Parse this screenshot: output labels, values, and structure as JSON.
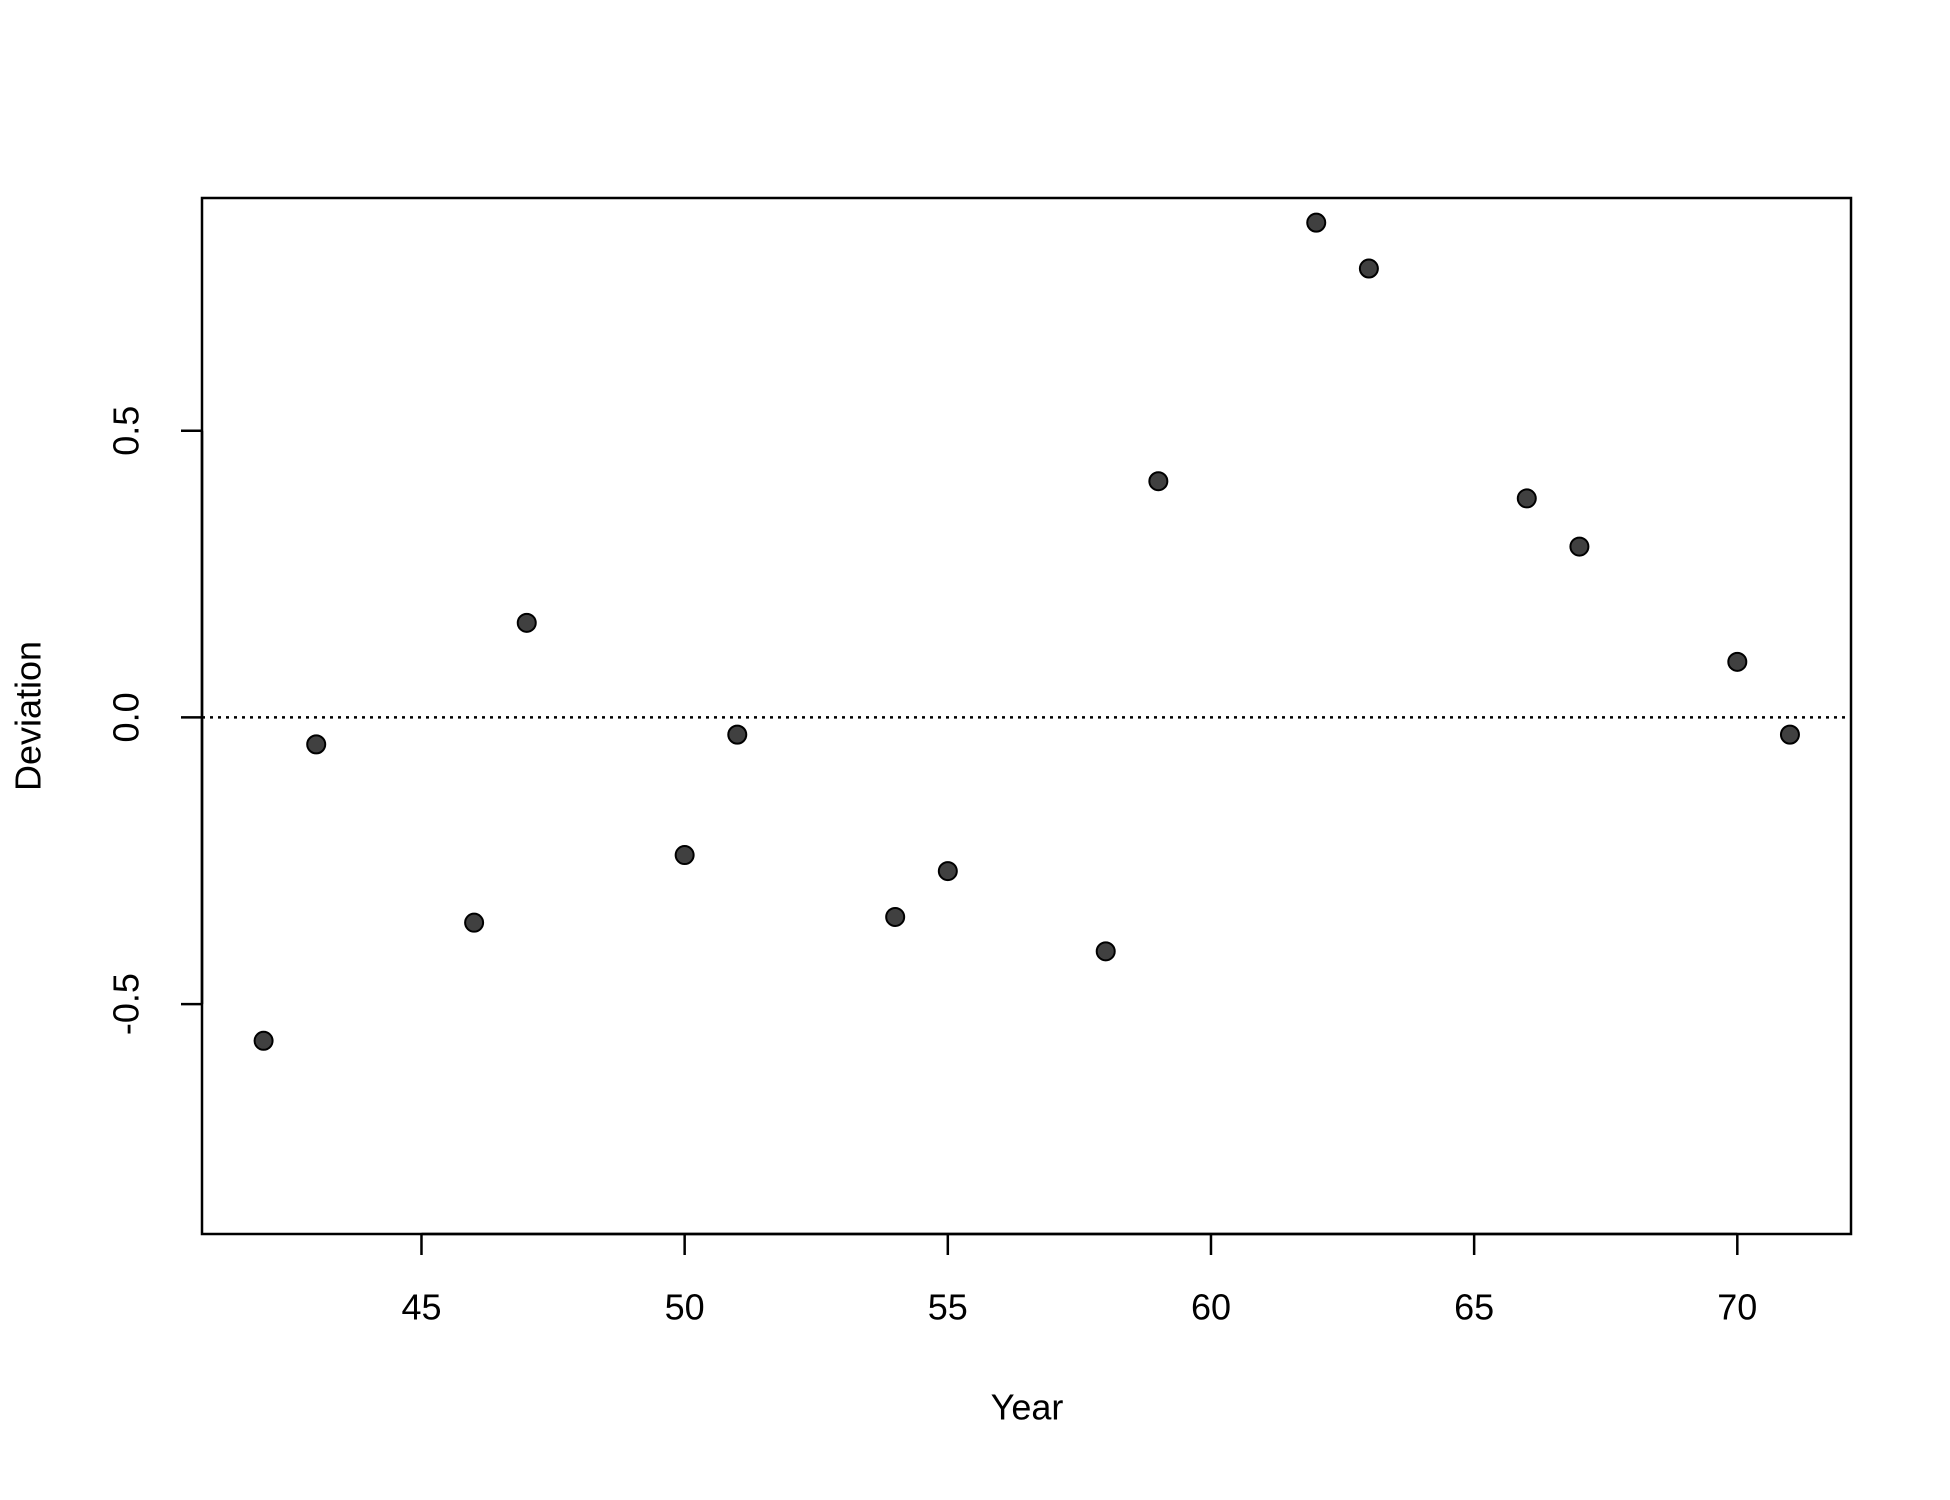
{
  "chart_data": {
    "type": "scatter",
    "x_label": "Year",
    "y_label": "Deviation",
    "x": [
      42,
      43,
      46,
      47,
      50,
      51,
      54,
      55,
      58,
      59,
      62,
      63,
      66,
      67,
      70,
      71
    ],
    "series": [
      {
        "color": "#404040",
        "values": [
          -0.564,
          -0.047,
          -0.358,
          0.165,
          -0.24,
          -0.03,
          -0.348,
          -0.268,
          -0.408,
          0.412,
          0.863,
          0.783,
          0.382,
          0.298,
          0.097,
          -0.03
        ]
      }
    ],
    "xlim": [
      40.83,
      72.16
    ],
    "ylim": [
      -0.901,
      0.906
    ],
    "xticks": [
      45,
      50,
      55,
      60,
      65,
      70
    ],
    "yticks": [
      -0.5,
      {
        "value": 0,
        "label": "0.0"
      },
      0.5
    ],
    "hline": 0
  }
}
